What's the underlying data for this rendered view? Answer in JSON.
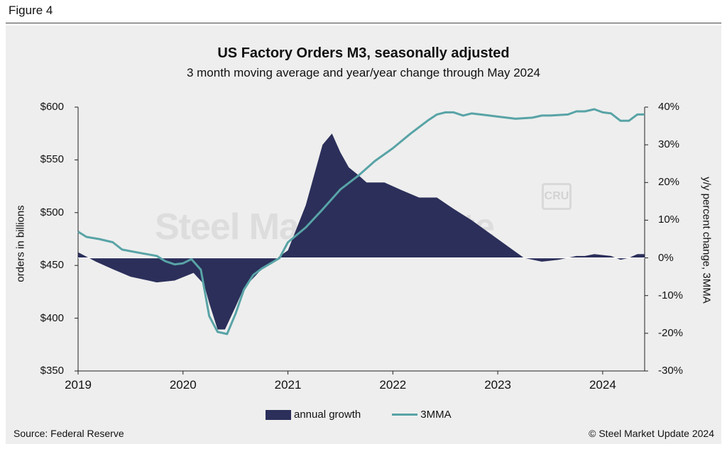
{
  "figure_label": "Figure 4",
  "source": "Source: Federal Reserve",
  "copyright": "© Steel Market Update 2024",
  "watermark_text": "Steel Market Update",
  "watermark_logo": "CRU",
  "colors": {
    "area": "#2b2f5a",
    "line": "#58a3a6",
    "panel": "#eeeeee"
  },
  "chart_data": {
    "type": "line",
    "title": "US Factory Orders M3, seasonally adjusted",
    "subtitle": "3 month moving average and year/year change through May 2024",
    "ylabel_left": "orders in billions",
    "ylabel_right": "y/y percent change, 3MMA",
    "ylim_left": [
      350,
      600
    ],
    "ylim_right": [
      -30,
      40
    ],
    "yticks_left": [
      "$600",
      "$550",
      "$500",
      "$450",
      "$400",
      "$350"
    ],
    "yticks_right": [
      "40%",
      "30%",
      "20%",
      "10%",
      "0%",
      "-10%",
      "-20%",
      "-30%"
    ],
    "xticks": [
      "2019",
      "2020",
      "2021",
      "2022",
      "2023",
      "2024"
    ],
    "legend": [
      "annual growth",
      "3MMA"
    ],
    "series": [
      {
        "name": "annual growth",
        "type": "area",
        "axis": "right",
        "x": [
          2019.0,
          2019.17,
          2019.33,
          2019.5,
          2019.67,
          2019.75,
          2019.92,
          2020.1,
          2020.2,
          2020.25,
          2020.33,
          2020.4,
          2020.5,
          2020.58,
          2020.75,
          2021.0,
          2021.17,
          2021.33,
          2021.42,
          2021.5,
          2021.58,
          2021.67,
          2021.75,
          2021.92,
          2022.08,
          2022.25,
          2022.42,
          2022.58,
          2022.75,
          2023.0,
          2023.25,
          2023.42,
          2023.58,
          2023.75,
          2023.83,
          2023.92,
          2024.08,
          2024.17,
          2024.25,
          2024.33,
          2024.4
        ],
        "values": [
          1.5,
          -1.0,
          -3.0,
          -5.0,
          -6.0,
          -6.5,
          -6.0,
          -4.0,
          -7.0,
          -12.0,
          -19.0,
          -19.0,
          -13.0,
          -8.0,
          -3.0,
          2.0,
          14.0,
          30.0,
          33.0,
          28.0,
          24.0,
          22.0,
          20.0,
          20.0,
          18.0,
          16.0,
          16.0,
          13.0,
          10.0,
          5.0,
          0.0,
          -1.0,
          -0.5,
          0.5,
          0.5,
          1.0,
          0.5,
          -0.5,
          0.0,
          1.0,
          1.0
        ]
      },
      {
        "name": "3MMA",
        "type": "line",
        "axis": "left",
        "x": [
          2019.0,
          2019.08,
          2019.2,
          2019.33,
          2019.42,
          2019.58,
          2019.75,
          2019.83,
          2019.92,
          2020.0,
          2020.08,
          2020.17,
          2020.25,
          2020.33,
          2020.42,
          2020.5,
          2020.58,
          2020.67,
          2020.75,
          2020.92,
          2021.0,
          2021.17,
          2021.33,
          2021.5,
          2021.67,
          2021.83,
          2022.0,
          2022.17,
          2022.33,
          2022.42,
          2022.5,
          2022.58,
          2022.67,
          2022.75,
          2022.92,
          2023.0,
          2023.17,
          2023.33,
          2023.42,
          2023.5,
          2023.67,
          2023.75,
          2023.83,
          2023.92,
          2024.0,
          2024.08,
          2024.17,
          2024.25,
          2024.33,
          2024.4
        ],
        "values": [
          482,
          477,
          475,
          472,
          465,
          462,
          459,
          454,
          451,
          452,
          456,
          446,
          402,
          387,
          385,
          404,
          427,
          441,
          447,
          457,
          472,
          486,
          503,
          522,
          535,
          549,
          561,
          575,
          587,
          593,
          595,
          595,
          592,
          594,
          592,
          591,
          589,
          590,
          592,
          592,
          593,
          596,
          596,
          598,
          595,
          594,
          587,
          587,
          593,
          593
        ]
      }
    ]
  }
}
